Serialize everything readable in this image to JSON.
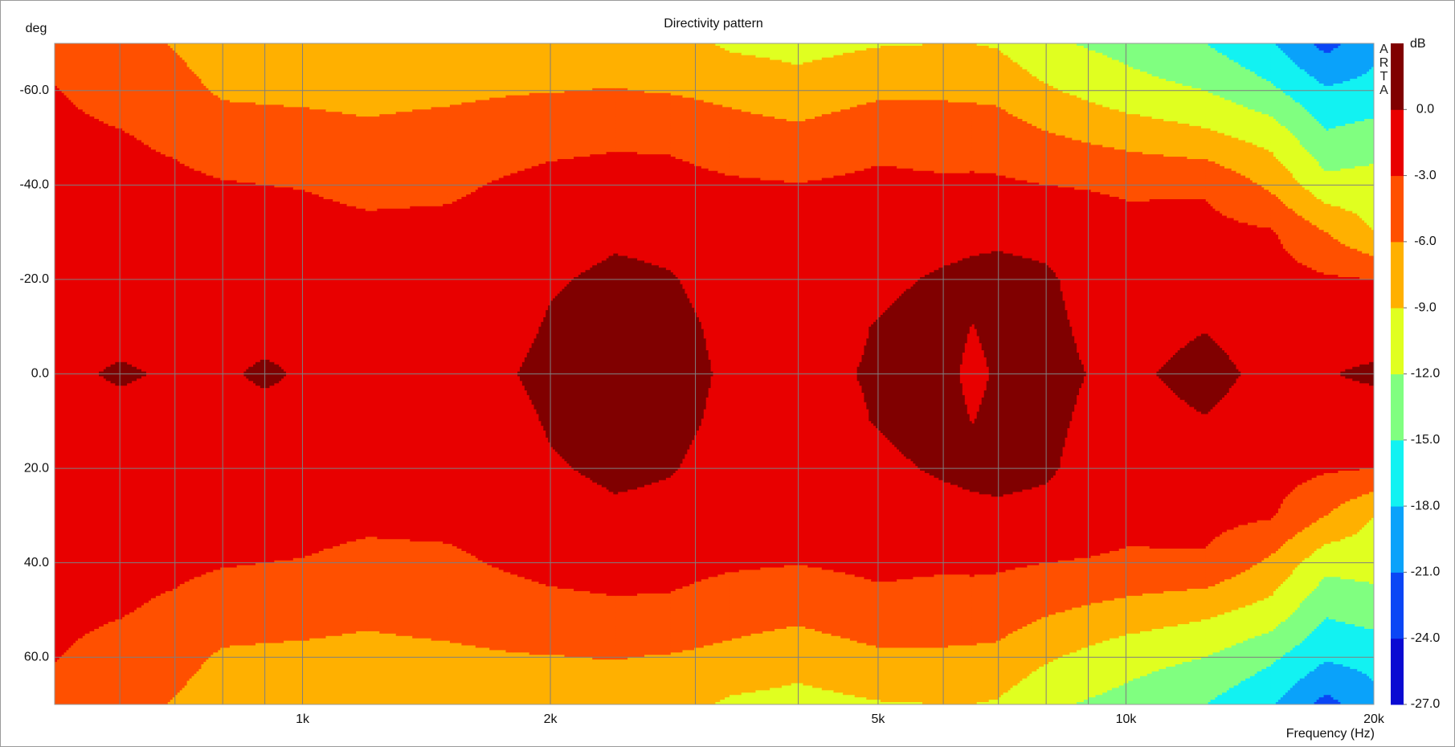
{
  "chart_data": {
    "type": "contour",
    "title": "Directivity pattern",
    "xlabel": "Frequency (Hz)",
    "ylabel": "deg",
    "logo": "ARTA",
    "xscale": "log",
    "xlim": [
      500,
      20000
    ],
    "ylim": [
      -70,
      70
    ],
    "y_inverted": true,
    "grid": true,
    "xticks": [
      {
        "value": 1000,
        "label": "1k"
      },
      {
        "value": 2000,
        "label": "2k"
      },
      {
        "value": 5000,
        "label": "5k"
      },
      {
        "value": 10000,
        "label": "10k"
      },
      {
        "value": 20000,
        "label": "20k"
      }
    ],
    "xminor": [
      600,
      700,
      800,
      900,
      3000,
      4000,
      6000,
      7000,
      8000,
      9000
    ],
    "yticks": [
      {
        "value": -60,
        "label": "-60.0"
      },
      {
        "value": -40,
        "label": "-40.0"
      },
      {
        "value": -20,
        "label": "-20.0"
      },
      {
        "value": 0,
        "label": "0.0"
      },
      {
        "value": 20,
        "label": "20.0"
      },
      {
        "value": 40,
        "label": "40.0"
      },
      {
        "value": 60,
        "label": "60.0"
      }
    ],
    "x": [
      500,
      600,
      700,
      800,
      900,
      1000,
      1200,
      1500,
      1800,
      2000,
      2400,
      2800,
      3300,
      4000,
      5000,
      6000,
      6500,
      7000,
      8000,
      10000,
      12500,
      15000,
      17500,
      20000
    ],
    "y": [
      -70,
      -60,
      -50,
      -40,
      -30,
      -20,
      -10,
      0,
      10,
      20,
      30,
      40,
      50,
      60,
      70
    ],
    "z": [
      [
        -4,
        -2.9,
        -2.5,
        -2,
        -1.6,
        -1.2,
        -0.8,
        -0.6,
        -0.8,
        -1.2,
        -1.6,
        -2,
        -2.5,
        -2.9,
        -4
      ],
      [
        -5,
        -3.8,
        -2.8,
        -2.1,
        -1.6,
        -1.2,
        -0.8,
        0.3,
        -0.8,
        -1.2,
        -1.6,
        -2.1,
        -2.8,
        -3.8,
        -5
      ],
      [
        -6.2,
        -5,
        -3.5,
        -2.4,
        -1.6,
        -1.2,
        -0.8,
        -0.3,
        -0.8,
        -1.2,
        -1.6,
        -2.4,
        -3.5,
        -5,
        -6.2
      ],
      [
        -7.5,
        -6.4,
        -4.5,
        -2.8,
        -1.9,
        -1.3,
        -0.9,
        -0.5,
        -0.9,
        -1.3,
        -1.9,
        -2.8,
        -4.5,
        -6.4,
        -7.5
      ],
      [
        -7.6,
        -6.5,
        -4.8,
        -3,
        -2,
        -1.4,
        -1,
        0.5,
        -1,
        -1.4,
        -2,
        -3,
        -4.8,
        -6.5,
        -7.6
      ],
      [
        -7.7,
        -6.6,
        -4.9,
        -3.1,
        -2.1,
        -1.5,
        -1,
        -0.3,
        -1,
        -1.5,
        -2.1,
        -3.1,
        -4.9,
        -6.6,
        -7.7
      ],
      [
        -7.8,
        -6.8,
        -5.4,
        -3.7,
        -2.4,
        -1.6,
        -1,
        -0.6,
        -1,
        -1.6,
        -2.4,
        -3.7,
        -5.4,
        -6.8,
        -7.8
      ],
      [
        -7.6,
        -6.6,
        -4.8,
        -3.5,
        -2.3,
        -1.5,
        -1,
        -0.6,
        -1,
        -1.5,
        -2.3,
        -3.5,
        -4.8,
        -6.6,
        -7.6
      ],
      [
        -7.4,
        -6.2,
        -4.2,
        -2.6,
        -1.9,
        -1.3,
        -0.8,
        -0.1,
        -0.8,
        -1.3,
        -1.9,
        -2.6,
        -4.2,
        -6.2,
        -7.4
      ],
      [
        -7.3,
        -6.1,
        -3.8,
        -2.2,
        -1.3,
        -0.3,
        0.3,
        0.8,
        0.3,
        -0.3,
        -1.3,
        -2.2,
        -3.8,
        -6.1,
        -7.3
      ],
      [
        -7.2,
        -5.9,
        -3.5,
        -1.8,
        -0.5,
        0.6,
        1.2,
        1.5,
        1.2,
        0.6,
        -0.5,
        -1.8,
        -3.5,
        -5.9,
        -7.2
      ],
      [
        -7.5,
        -6.2,
        -3.6,
        -2,
        -0.8,
        0.2,
        0.8,
        1,
        0.8,
        0.2,
        -0.8,
        -2,
        -3.6,
        -6.2,
        -7.5
      ],
      [
        -9.5,
        -6.8,
        -4.6,
        -2.6,
        -1.8,
        -1.2,
        -0.7,
        -0.4,
        -0.7,
        -1.2,
        -1.8,
        -2.6,
        -4.6,
        -6.8,
        -9.5
      ],
      [
        -10,
        -7.8,
        -5.1,
        -2.9,
        -2.2,
        -1.5,
        -0.9,
        -0.5,
        -0.9,
        -1.5,
        -2.2,
        -2.9,
        -5.1,
        -7.8,
        -10
      ],
      [
        -9.2,
        -6.6,
        -3.8,
        -2.4,
        -1.4,
        -0.5,
        0.1,
        0.2,
        0.1,
        -0.5,
        -1.4,
        -2.4,
        -3.8,
        -6.6,
        -9.2
      ],
      [
        -9,
        -6.5,
        -4.2,
        -2.6,
        -0.8,
        0.3,
        1,
        0.8,
        1,
        0.3,
        -0.8,
        -2.6,
        -4.2,
        -6.5,
        -9
      ],
      [
        -9,
        -6.6,
        -4.3,
        -2.5,
        -0.5,
        0.5,
        -0.05,
        -0.6,
        -0.05,
        0.5,
        -0.5,
        -2.5,
        -4.3,
        -6.6,
        -9
      ],
      [
        -9.3,
        -6.8,
        -4.4,
        -2.6,
        -0.4,
        0.6,
        0.6,
        0.3,
        0.6,
        0.6,
        -0.4,
        -2.6,
        -4.4,
        -6.8,
        -9.3
      ],
      [
        -11.5,
        -8.6,
        -5.6,
        -3,
        -0.6,
        0.3,
        0.4,
        0.5,
        0.4,
        0.3,
        -0.6,
        -3,
        -5.6,
        -8.6,
        -11.5
      ],
      [
        -13,
        -10.8,
        -7,
        -3.4,
        -2.2,
        -1.5,
        -0.9,
        -0.5,
        -0.9,
        -1.5,
        -2.2,
        -3.4,
        -7,
        -10.8,
        -13
      ],
      [
        -15,
        -12,
        -8.2,
        -3.4,
        -2.1,
        -1.2,
        -0.1,
        0.8,
        -0.1,
        -1.2,
        -2.1,
        -3.4,
        -8.2,
        -12,
        -15
      ],
      [
        -17.8,
        -14.4,
        -10,
        -6.6,
        -2.7,
        -1.8,
        -1.2,
        -0.7,
        -1.2,
        -1.8,
        -2.7,
        -6.6,
        -10,
        -14.4,
        -17.8
      ],
      [
        -22,
        -17.6,
        -14.5,
        -11,
        -6,
        -2.6,
        -1.3,
        -0.2,
        -1.3,
        -2.6,
        -6,
        -11,
        -14.5,
        -17.6,
        -22
      ],
      [
        -19,
        -17,
        -13.5,
        -10.8,
        -9,
        -3,
        -1.8,
        0.6,
        -1.8,
        -3,
        -9,
        -10.8,
        -13.5,
        -17,
        -19
      ]
    ],
    "colorbar": {
      "label": "dB",
      "lim": [
        -27,
        3
      ],
      "ticks": [
        {
          "value": 0,
          "label": "0.0"
        },
        {
          "value": -3,
          "label": "-3.0"
        },
        {
          "value": -6,
          "label": "-6.0"
        },
        {
          "value": -9,
          "label": "-9.0"
        },
        {
          "value": -12,
          "label": "-12.0"
        },
        {
          "value": -15,
          "label": "-15.0"
        },
        {
          "value": -18,
          "label": "-18.0"
        },
        {
          "value": -21,
          "label": "-21.0"
        },
        {
          "value": -24,
          "label": "-24.0"
        },
        {
          "value": -27,
          "label": "-27.0"
        }
      ],
      "colors": [
        "#0a0ad2",
        "#0a46f5",
        "#0aa2fa",
        "#12f2f2",
        "#80ff80",
        "#e0ff20",
        "#ffb000",
        "#ff5000",
        "#e80000",
        "#800000"
      ]
    }
  }
}
